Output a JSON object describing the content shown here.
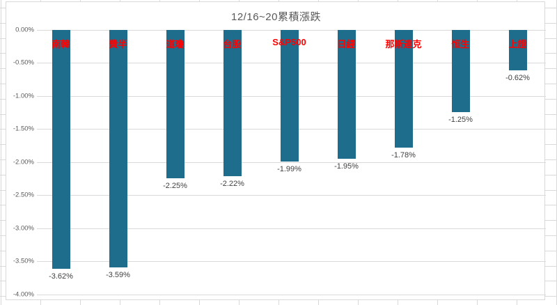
{
  "chart_data": {
    "type": "bar",
    "title": "12/16~20累積漲跌",
    "categories": [
      "南韓",
      "費半",
      "道瓊",
      "台股",
      "S&P500",
      "日經",
      "那斯達克",
      "恒生",
      "上證"
    ],
    "values": [
      -3.62,
      -3.59,
      -2.25,
      -2.22,
      -1.99,
      -1.95,
      -1.78,
      -1.25,
      -0.62
    ],
    "data_labels": [
      "-3.62%",
      "-3.59%",
      "-2.25%",
      "-2.22%",
      "-1.99%",
      "-1.95%",
      "-1.78%",
      "-1.25%",
      "-0.62%"
    ],
    "y_ticks": [
      "0.00%",
      "-0.50%",
      "-1.00%",
      "-1.50%",
      "-2.00%",
      "-2.50%",
      "-3.00%",
      "-3.50%",
      "-4.00%"
    ],
    "xlabel": "",
    "ylabel": "",
    "ylim": [
      -4.0,
      0.0
    ],
    "grid": true,
    "legend": false,
    "bar_color": "#1f6d8c",
    "category_label_color": "#ff0000",
    "value_label_color": "#404040",
    "title_color": "#595959",
    "axis_tick_color": "#595959",
    "gridline_color": "#d9d9d9"
  }
}
